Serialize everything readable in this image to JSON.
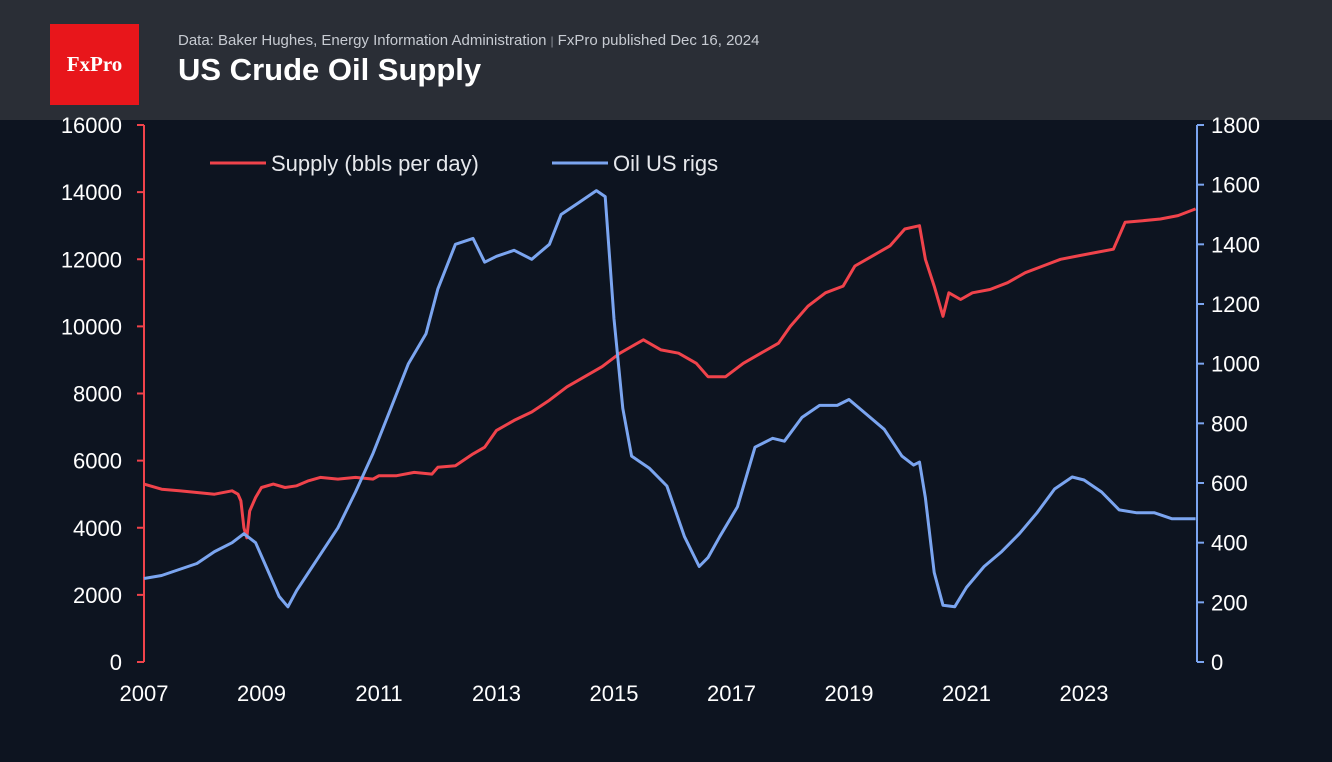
{
  "header": {
    "logo_text": "FxPro",
    "source_text": "Data: Baker Hughes, Energy Information Administration",
    "separator": "|",
    "published_text": "FxPro published Dec 16, 2024",
    "title": "US Crude Oil Supply"
  },
  "colors": {
    "background": "#0d1420",
    "header_bg": "#2a2e36",
    "logo_bg": "#e8161b",
    "supply": "#f0434b",
    "rigs": "#7ba5f0"
  },
  "chart_data": {
    "type": "line",
    "title": "US Crude Oil Supply",
    "x_ticks": [
      "2007",
      "2009",
      "2011",
      "2013",
      "2015",
      "2017",
      "2019",
      "2021",
      "2023"
    ],
    "x_range": [
      2007,
      2024.9
    ],
    "y_left": {
      "ticks": [
        "0",
        "2000",
        "4000",
        "6000",
        "8000",
        "10000",
        "12000",
        "14000",
        "16000"
      ],
      "range": [
        0,
        16000
      ]
    },
    "y_right": {
      "ticks": [
        "0",
        "200",
        "400",
        "600",
        "800",
        "1000",
        "1200",
        "1400",
        "1600",
        "1800"
      ],
      "range": [
        0,
        1800
      ]
    },
    "legend_position": "top-left",
    "grid": false,
    "series": [
      {
        "name": "Supply (bbls per day)",
        "axis": "left",
        "color": "#f0434b",
        "points": [
          [
            2007.0,
            5300
          ],
          [
            2007.3,
            5150
          ],
          [
            2007.6,
            5100
          ],
          [
            2007.9,
            5050
          ],
          [
            2008.2,
            5000
          ],
          [
            2008.5,
            5100
          ],
          [
            2008.6,
            5000
          ],
          [
            2008.65,
            4800
          ],
          [
            2008.7,
            4000
          ],
          [
            2008.75,
            3700
          ],
          [
            2008.8,
            4500
          ],
          [
            2008.9,
            4900
          ],
          [
            2009.0,
            5200
          ],
          [
            2009.2,
            5300
          ],
          [
            2009.4,
            5200
          ],
          [
            2009.6,
            5250
          ],
          [
            2009.8,
            5400
          ],
          [
            2010.0,
            5500
          ],
          [
            2010.3,
            5450
          ],
          [
            2010.6,
            5500
          ],
          [
            2010.9,
            5450
          ],
          [
            2011.0,
            5550
          ],
          [
            2011.3,
            5550
          ],
          [
            2011.6,
            5650
          ],
          [
            2011.9,
            5600
          ],
          [
            2012.0,
            5800
          ],
          [
            2012.3,
            5850
          ],
          [
            2012.6,
            6200
          ],
          [
            2012.8,
            6400
          ],
          [
            2013.0,
            6900
          ],
          [
            2013.3,
            7200
          ],
          [
            2013.6,
            7450
          ],
          [
            2013.9,
            7800
          ],
          [
            2014.2,
            8200
          ],
          [
            2014.5,
            8500
          ],
          [
            2014.8,
            8800
          ],
          [
            2015.1,
            9200
          ],
          [
            2015.3,
            9400
          ],
          [
            2015.5,
            9600
          ],
          [
            2015.8,
            9300
          ],
          [
            2016.1,
            9200
          ],
          [
            2016.4,
            8900
          ],
          [
            2016.6,
            8500
          ],
          [
            2016.9,
            8500
          ],
          [
            2017.2,
            8900
          ],
          [
            2017.5,
            9200
          ],
          [
            2017.8,
            9500
          ],
          [
            2018.0,
            10000
          ],
          [
            2018.3,
            10600
          ],
          [
            2018.6,
            11000
          ],
          [
            2018.9,
            11200
          ],
          [
            2019.1,
            11800
          ],
          [
            2019.4,
            12100
          ],
          [
            2019.7,
            12400
          ],
          [
            2019.95,
            12900
          ],
          [
            2020.2,
            13000
          ],
          [
            2020.3,
            12000
          ],
          [
            2020.45,
            11200
          ],
          [
            2020.6,
            10300
          ],
          [
            2020.7,
            11000
          ],
          [
            2020.9,
            10800
          ],
          [
            2021.1,
            11000
          ],
          [
            2021.4,
            11100
          ],
          [
            2021.7,
            11300
          ],
          [
            2022.0,
            11600
          ],
          [
            2022.3,
            11800
          ],
          [
            2022.6,
            12000
          ],
          [
            2022.9,
            12100
          ],
          [
            2023.2,
            12200
          ],
          [
            2023.5,
            12300
          ],
          [
            2023.7,
            13100
          ],
          [
            2024.0,
            13150
          ],
          [
            2024.3,
            13200
          ],
          [
            2024.6,
            13300
          ],
          [
            2024.9,
            13500
          ]
        ]
      },
      {
        "name": "Oil US rigs",
        "axis": "right",
        "color": "#7ba5f0",
        "points": [
          [
            2007.0,
            280
          ],
          [
            2007.3,
            290
          ],
          [
            2007.6,
            310
          ],
          [
            2007.9,
            330
          ],
          [
            2008.2,
            370
          ],
          [
            2008.5,
            400
          ],
          [
            2008.7,
            430
          ],
          [
            2008.9,
            400
          ],
          [
            2009.1,
            310
          ],
          [
            2009.3,
            220
          ],
          [
            2009.45,
            185
          ],
          [
            2009.6,
            240
          ],
          [
            2009.8,
            300
          ],
          [
            2010.0,
            360
          ],
          [
            2010.3,
            450
          ],
          [
            2010.6,
            570
          ],
          [
            2010.9,
            700
          ],
          [
            2011.2,
            850
          ],
          [
            2011.5,
            1000
          ],
          [
            2011.8,
            1100
          ],
          [
            2012.0,
            1250
          ],
          [
            2012.3,
            1400
          ],
          [
            2012.6,
            1420
          ],
          [
            2012.8,
            1340
          ],
          [
            2013.0,
            1360
          ],
          [
            2013.3,
            1380
          ],
          [
            2013.6,
            1350
          ],
          [
            2013.9,
            1400
          ],
          [
            2014.1,
            1500
          ],
          [
            2014.4,
            1540
          ],
          [
            2014.7,
            1580
          ],
          [
            2014.85,
            1560
          ],
          [
            2015.0,
            1150
          ],
          [
            2015.15,
            850
          ],
          [
            2015.3,
            690
          ],
          [
            2015.6,
            650
          ],
          [
            2015.9,
            590
          ],
          [
            2016.2,
            420
          ],
          [
            2016.45,
            320
          ],
          [
            2016.6,
            350
          ],
          [
            2016.8,
            420
          ],
          [
            2017.1,
            520
          ],
          [
            2017.4,
            720
          ],
          [
            2017.7,
            750
          ],
          [
            2017.9,
            740
          ],
          [
            2018.2,
            820
          ],
          [
            2018.5,
            860
          ],
          [
            2018.8,
            860
          ],
          [
            2019.0,
            880
          ],
          [
            2019.3,
            830
          ],
          [
            2019.6,
            780
          ],
          [
            2019.9,
            690
          ],
          [
            2020.1,
            660
          ],
          [
            2020.2,
            670
          ],
          [
            2020.3,
            550
          ],
          [
            2020.45,
            300
          ],
          [
            2020.6,
            190
          ],
          [
            2020.8,
            185
          ],
          [
            2021.0,
            250
          ],
          [
            2021.3,
            320
          ],
          [
            2021.6,
            370
          ],
          [
            2021.9,
            430
          ],
          [
            2022.2,
            500
          ],
          [
            2022.5,
            580
          ],
          [
            2022.8,
            620
          ],
          [
            2023.0,
            610
          ],
          [
            2023.3,
            570
          ],
          [
            2023.6,
            510
          ],
          [
            2023.9,
            500
          ],
          [
            2024.2,
            500
          ],
          [
            2024.5,
            480
          ],
          [
            2024.9,
            480
          ]
        ]
      }
    ]
  }
}
